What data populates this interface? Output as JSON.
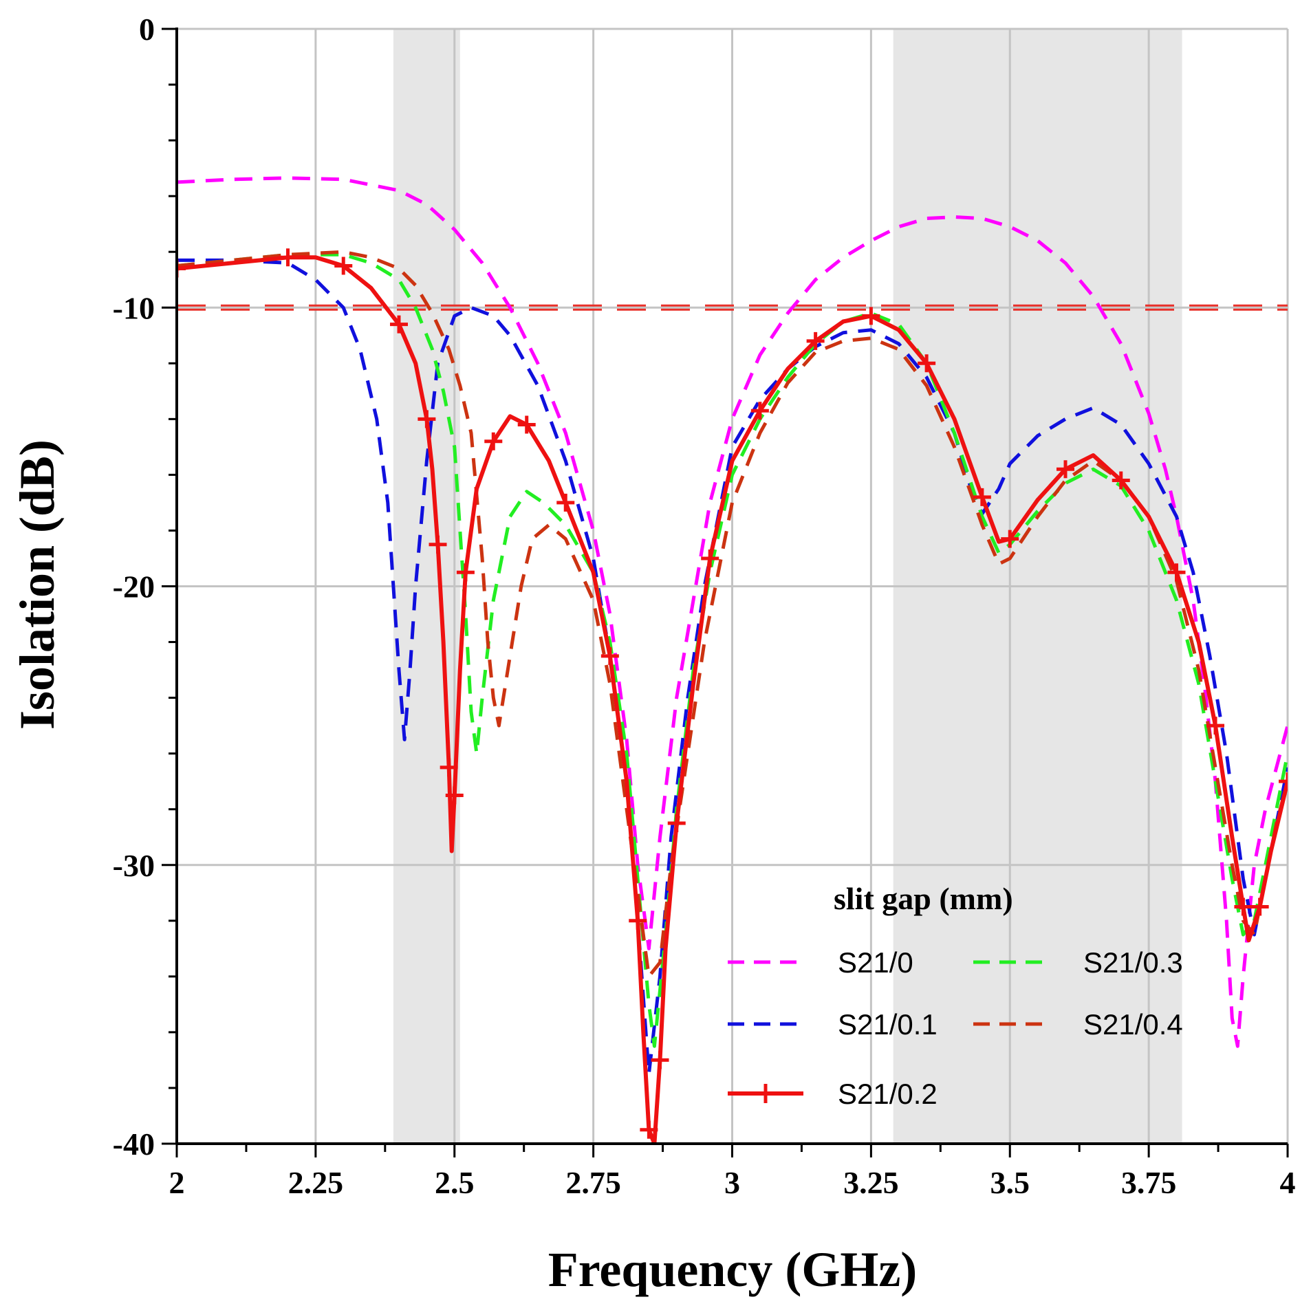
{
  "chart_data": {
    "type": "line",
    "xlabel": "Frequency (GHz)",
    "ylabel": "Isolation (dB)",
    "xlim": [
      2,
      4
    ],
    "ylim": [
      -40,
      0
    ],
    "x_ticks": [
      "2",
      "2.25",
      "2.5",
      "2.75",
      "3",
      "3.25",
      "3.5",
      "3.75",
      "4"
    ],
    "x_tick_values": [
      2,
      2.25,
      2.5,
      2.75,
      3,
      3.25,
      3.5,
      3.75,
      4
    ],
    "y_ticks": [
      "0",
      "-10",
      "-20",
      "-30",
      "-40"
    ],
    "y_tick_values": [
      0,
      -10,
      -20,
      -30,
      -40
    ],
    "grid": true,
    "shaded_bands": [
      {
        "from": 2.39,
        "to": 2.51
      },
      {
        "from": 3.29,
        "to": 3.81
      }
    ],
    "reference_line": {
      "y": -10,
      "color": "#e8302a",
      "style": "long-dash"
    },
    "legend": {
      "title": "slit gap (mm)",
      "placement": "bottom-right"
    },
    "series": [
      {
        "name": "S21/0",
        "color": "#ff00ff",
        "style": "dashed",
        "marker": "none",
        "points": [
          [
            2.0,
            -5.5
          ],
          [
            2.1,
            -5.4
          ],
          [
            2.2,
            -5.35
          ],
          [
            2.3,
            -5.4
          ],
          [
            2.4,
            -5.8
          ],
          [
            2.45,
            -6.3
          ],
          [
            2.5,
            -7.2
          ],
          [
            2.55,
            -8.4
          ],
          [
            2.6,
            -10.0
          ],
          [
            2.65,
            -12.0
          ],
          [
            2.7,
            -14.5
          ],
          [
            2.75,
            -18.0
          ],
          [
            2.78,
            -21.0
          ],
          [
            2.81,
            -25.5
          ],
          [
            2.83,
            -30.0
          ],
          [
            2.85,
            -33.0
          ],
          [
            2.87,
            -29.0
          ],
          [
            2.9,
            -24.0
          ],
          [
            2.93,
            -20.5
          ],
          [
            2.96,
            -17.0
          ],
          [
            3.0,
            -14.0
          ],
          [
            3.05,
            -11.7
          ],
          [
            3.1,
            -10.2
          ],
          [
            3.15,
            -9.0
          ],
          [
            3.2,
            -8.2
          ],
          [
            3.25,
            -7.6
          ],
          [
            3.3,
            -7.1
          ],
          [
            3.35,
            -6.8
          ],
          [
            3.4,
            -6.75
          ],
          [
            3.45,
            -6.8
          ],
          [
            3.5,
            -7.1
          ],
          [
            3.55,
            -7.6
          ],
          [
            3.6,
            -8.4
          ],
          [
            3.65,
            -9.6
          ],
          [
            3.7,
            -11.3
          ],
          [
            3.75,
            -13.8
          ],
          [
            3.78,
            -15.8
          ],
          [
            3.8,
            -17.5
          ],
          [
            3.83,
            -20.5
          ],
          [
            3.85,
            -23.5
          ],
          [
            3.87,
            -27.0
          ],
          [
            3.89,
            -32.0
          ],
          [
            3.9,
            -35.5
          ],
          [
            3.91,
            -36.5
          ],
          [
            3.92,
            -34.0
          ],
          [
            3.94,
            -30.0
          ],
          [
            3.96,
            -28.0
          ],
          [
            3.98,
            -26.5
          ],
          [
            4.0,
            -25.0
          ]
        ]
      },
      {
        "name": "S21/0.1",
        "color": "#1010dd",
        "style": "dashed",
        "marker": "none",
        "points": [
          [
            2.0,
            -8.3
          ],
          [
            2.1,
            -8.3
          ],
          [
            2.2,
            -8.4
          ],
          [
            2.25,
            -9.0
          ],
          [
            2.3,
            -10.0
          ],
          [
            2.33,
            -11.5
          ],
          [
            2.36,
            -14.0
          ],
          [
            2.38,
            -17.0
          ],
          [
            2.39,
            -20.0
          ],
          [
            2.4,
            -23.0
          ],
          [
            2.41,
            -25.5
          ],
          [
            2.42,
            -23.0
          ],
          [
            2.43,
            -20.0
          ],
          [
            2.45,
            -15.5
          ],
          [
            2.47,
            -12.0
          ],
          [
            2.5,
            -10.3
          ],
          [
            2.53,
            -10.0
          ],
          [
            2.57,
            -10.3
          ],
          [
            2.6,
            -11.0
          ],
          [
            2.65,
            -12.8
          ],
          [
            2.7,
            -15.5
          ],
          [
            2.75,
            -19.0
          ],
          [
            2.78,
            -22.5
          ],
          [
            2.81,
            -27.0
          ],
          [
            2.83,
            -32.0
          ],
          [
            2.85,
            -37.5
          ],
          [
            2.87,
            -34.0
          ],
          [
            2.89,
            -29.0
          ],
          [
            2.92,
            -24.0
          ],
          [
            2.95,
            -20.0
          ],
          [
            2.98,
            -17.0
          ],
          [
            3.0,
            -15.0
          ],
          [
            3.05,
            -13.3
          ],
          [
            3.1,
            -12.2
          ],
          [
            3.15,
            -11.4
          ],
          [
            3.2,
            -10.9
          ],
          [
            3.25,
            -10.8
          ],
          [
            3.3,
            -11.3
          ],
          [
            3.35,
            -12.5
          ],
          [
            3.4,
            -14.5
          ],
          [
            3.43,
            -16.5
          ],
          [
            3.45,
            -17.4
          ],
          [
            3.48,
            -16.5
          ],
          [
            3.5,
            -15.6
          ],
          [
            3.55,
            -14.6
          ],
          [
            3.6,
            -14.0
          ],
          [
            3.65,
            -13.6
          ],
          [
            3.7,
            -14.2
          ],
          [
            3.75,
            -15.6
          ],
          [
            3.8,
            -17.5
          ],
          [
            3.83,
            -19.5
          ],
          [
            3.86,
            -22.5
          ],
          [
            3.89,
            -26.0
          ],
          [
            3.92,
            -30.5
          ],
          [
            3.94,
            -32.5
          ],
          [
            3.96,
            -30.5
          ],
          [
            3.98,
            -28.5
          ],
          [
            4.0,
            -26.5
          ]
        ]
      },
      {
        "name": "S21/0.3",
        "color": "#22ee22",
        "style": "dashed",
        "marker": "none",
        "points": [
          [
            2.0,
            -8.5
          ],
          [
            2.1,
            -8.3
          ],
          [
            2.2,
            -8.1
          ],
          [
            2.3,
            -8.1
          ],
          [
            2.35,
            -8.4
          ],
          [
            2.4,
            -9.0
          ],
          [
            2.43,
            -10.0
          ],
          [
            2.46,
            -11.5
          ],
          [
            2.48,
            -13.0
          ],
          [
            2.5,
            -15.0
          ],
          [
            2.51,
            -18.0
          ],
          [
            2.52,
            -21.0
          ],
          [
            2.53,
            -24.5
          ],
          [
            2.54,
            -26.0
          ],
          [
            2.55,
            -24.0
          ],
          [
            2.57,
            -20.5
          ],
          [
            2.6,
            -17.5
          ],
          [
            2.63,
            -16.6
          ],
          [
            2.66,
            -17.0
          ],
          [
            2.7,
            -17.8
          ],
          [
            2.75,
            -19.5
          ],
          [
            2.78,
            -22.0
          ],
          [
            2.81,
            -26.0
          ],
          [
            2.83,
            -30.5
          ],
          [
            2.85,
            -35.0
          ],
          [
            2.86,
            -36.5
          ],
          [
            2.88,
            -32.5
          ],
          [
            2.9,
            -28.0
          ],
          [
            2.93,
            -23.0
          ],
          [
            2.96,
            -19.5
          ],
          [
            3.0,
            -16.0
          ],
          [
            3.05,
            -14.0
          ],
          [
            3.1,
            -12.5
          ],
          [
            3.15,
            -11.3
          ],
          [
            3.2,
            -10.5
          ],
          [
            3.25,
            -10.2
          ],
          [
            3.3,
            -10.6
          ],
          [
            3.35,
            -12.0
          ],
          [
            3.4,
            -14.5
          ],
          [
            3.45,
            -17.5
          ],
          [
            3.48,
            -18.8
          ],
          [
            3.5,
            -18.5
          ],
          [
            3.55,
            -17.3
          ],
          [
            3.6,
            -16.3
          ],
          [
            3.65,
            -15.8
          ],
          [
            3.7,
            -16.4
          ],
          [
            3.75,
            -18.0
          ],
          [
            3.8,
            -20.5
          ],
          [
            3.84,
            -23.5
          ],
          [
            3.87,
            -27.0
          ],
          [
            3.9,
            -30.5
          ],
          [
            3.92,
            -32.5
          ],
          [
            3.94,
            -32.0
          ],
          [
            3.96,
            -30.0
          ],
          [
            3.98,
            -28.0
          ],
          [
            4.0,
            -26.0
          ]
        ]
      },
      {
        "name": "S21/0.4",
        "color": "#cc3311",
        "style": "dashed",
        "marker": "none",
        "points": [
          [
            2.0,
            -8.5
          ],
          [
            2.1,
            -8.3
          ],
          [
            2.2,
            -8.1
          ],
          [
            2.3,
            -8.0
          ],
          [
            2.35,
            -8.2
          ],
          [
            2.4,
            -8.6
          ],
          [
            2.43,
            -9.2
          ],
          [
            2.46,
            -10.2
          ],
          [
            2.49,
            -11.5
          ],
          [
            2.51,
            -12.8
          ],
          [
            2.53,
            -14.5
          ],
          [
            2.55,
            -19.0
          ],
          [
            2.56,
            -22.0
          ],
          [
            2.57,
            -24.0
          ],
          [
            2.58,
            -25.0
          ],
          [
            2.6,
            -22.5
          ],
          [
            2.62,
            -20.0
          ],
          [
            2.64,
            -18.3
          ],
          [
            2.67,
            -17.8
          ],
          [
            2.7,
            -18.3
          ],
          [
            2.75,
            -20.5
          ],
          [
            2.78,
            -23.5
          ],
          [
            2.81,
            -28.0
          ],
          [
            2.83,
            -31.0
          ],
          [
            2.85,
            -34.0
          ],
          [
            2.87,
            -33.5
          ],
          [
            2.89,
            -30.0
          ],
          [
            2.92,
            -26.0
          ],
          [
            2.95,
            -22.0
          ],
          [
            2.98,
            -19.0
          ],
          [
            3.0,
            -17.0
          ],
          [
            3.05,
            -14.5
          ],
          [
            3.1,
            -12.7
          ],
          [
            3.15,
            -11.6
          ],
          [
            3.2,
            -11.2
          ],
          [
            3.25,
            -11.1
          ],
          [
            3.3,
            -11.5
          ],
          [
            3.35,
            -12.8
          ],
          [
            3.4,
            -15.0
          ],
          [
            3.45,
            -17.8
          ],
          [
            3.48,
            -19.2
          ],
          [
            3.5,
            -19.0
          ],
          [
            3.55,
            -17.5
          ],
          [
            3.6,
            -16.2
          ],
          [
            3.65,
            -15.5
          ],
          [
            3.7,
            -16.2
          ],
          [
            3.75,
            -17.5
          ],
          [
            3.8,
            -19.8
          ],
          [
            3.84,
            -23.0
          ],
          [
            3.87,
            -26.5
          ],
          [
            3.9,
            -30.0
          ],
          [
            3.92,
            -32.0
          ],
          [
            3.94,
            -32.5
          ],
          [
            3.96,
            -30.5
          ],
          [
            3.98,
            -28.5
          ],
          [
            4.0,
            -27.0
          ]
        ]
      },
      {
        "name": "S21/0.2",
        "color": "#ee1111",
        "style": "solid",
        "marker": "plus",
        "points": [
          [
            2.0,
            -8.6
          ],
          [
            2.1,
            -8.4
          ],
          [
            2.2,
            -8.2
          ],
          [
            2.25,
            -8.2
          ],
          [
            2.3,
            -8.5
          ],
          [
            2.35,
            -9.3
          ],
          [
            2.4,
            -10.6
          ],
          [
            2.43,
            -12.0
          ],
          [
            2.45,
            -14.0
          ],
          [
            2.46,
            -15.8
          ],
          [
            2.47,
            -18.5
          ],
          [
            2.48,
            -22.0
          ],
          [
            2.49,
            -26.5
          ],
          [
            2.495,
            -29.5
          ],
          [
            2.5,
            -27.5
          ],
          [
            2.51,
            -23.0
          ],
          [
            2.52,
            -19.5
          ],
          [
            2.54,
            -16.5
          ],
          [
            2.57,
            -14.8
          ],
          [
            2.6,
            -13.9
          ],
          [
            2.63,
            -14.2
          ],
          [
            2.67,
            -15.5
          ],
          [
            2.7,
            -17.0
          ],
          [
            2.75,
            -19.5
          ],
          [
            2.78,
            -22.5
          ],
          [
            2.81,
            -27.0
          ],
          [
            2.83,
            -32.0
          ],
          [
            2.84,
            -36.0
          ],
          [
            2.85,
            -39.5
          ],
          [
            2.86,
            -40.0
          ],
          [
            2.87,
            -37.0
          ],
          [
            2.88,
            -33.0
          ],
          [
            2.9,
            -28.5
          ],
          [
            2.93,
            -23.5
          ],
          [
            2.96,
            -19.0
          ],
          [
            3.0,
            -15.5
          ],
          [
            3.05,
            -13.7
          ],
          [
            3.1,
            -12.2
          ],
          [
            3.15,
            -11.2
          ],
          [
            3.2,
            -10.5
          ],
          [
            3.25,
            -10.3
          ],
          [
            3.3,
            -10.8
          ],
          [
            3.35,
            -12.0
          ],
          [
            3.4,
            -14.0
          ],
          [
            3.45,
            -16.8
          ],
          [
            3.48,
            -18.4
          ],
          [
            3.5,
            -18.3
          ],
          [
            3.55,
            -16.9
          ],
          [
            3.6,
            -15.8
          ],
          [
            3.65,
            -15.3
          ],
          [
            3.7,
            -16.2
          ],
          [
            3.75,
            -17.5
          ],
          [
            3.8,
            -19.5
          ],
          [
            3.84,
            -22.0
          ],
          [
            3.87,
            -25.0
          ],
          [
            3.9,
            -29.0
          ],
          [
            3.92,
            -31.5
          ],
          [
            3.93,
            -32.7
          ],
          [
            3.95,
            -31.5
          ],
          [
            3.97,
            -29.5
          ],
          [
            4.0,
            -27.0
          ]
        ]
      }
    ]
  }
}
